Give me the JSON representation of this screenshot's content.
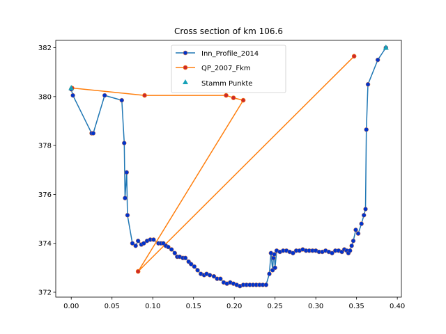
{
  "chart_data": {
    "type": "line",
    "title": "Cross section of km 106.6",
    "xlabel": "",
    "ylabel": "",
    "xlim": [
      -0.019,
      0.405
    ],
    "ylim": [
      371.8,
      382.3
    ],
    "xticks": [
      0.0,
      0.05,
      0.1,
      0.15,
      0.2,
      0.25,
      0.3,
      0.35,
      0.4
    ],
    "xtick_labels": [
      "0.00",
      "0.05",
      "0.10",
      "0.15",
      "0.20",
      "0.25",
      "0.30",
      "0.35",
      "0.40"
    ],
    "yticks": [
      372,
      374,
      376,
      378,
      380,
      382
    ],
    "ytick_labels": [
      "372",
      "374",
      "376",
      "378",
      "380",
      "382"
    ],
    "grid": false,
    "legend_position": "top-center",
    "series": [
      {
        "name": "Inn_Profile_2014",
        "kind": "line-marker",
        "color": "#1f77b4",
        "marker_color": "#0033cc",
        "x": [
          0.0,
          0.002,
          0.025,
          0.027,
          0.041,
          0.062,
          0.065,
          0.066,
          0.068,
          0.069,
          0.075,
          0.079,
          0.082,
          0.086,
          0.089,
          0.093,
          0.097,
          0.101,
          0.107,
          0.11,
          0.113,
          0.116,
          0.119,
          0.123,
          0.127,
          0.13,
          0.133,
          0.137,
          0.14,
          0.144,
          0.147,
          0.151,
          0.155,
          0.159,
          0.163,
          0.166,
          0.17,
          0.175,
          0.179,
          0.183,
          0.187,
          0.191,
          0.195,
          0.199,
          0.203,
          0.207,
          0.211,
          0.215,
          0.219,
          0.223,
          0.227,
          0.231,
          0.235,
          0.239,
          0.243,
          0.245,
          0.247,
          0.248,
          0.249,
          0.25,
          0.252,
          0.256,
          0.26,
          0.264,
          0.268,
          0.272,
          0.276,
          0.28,
          0.284,
          0.288,
          0.292,
          0.296,
          0.3,
          0.304,
          0.308,
          0.312,
          0.316,
          0.32,
          0.324,
          0.328,
          0.332,
          0.335,
          0.338,
          0.34,
          0.342,
          0.344,
          0.346,
          0.349,
          0.352,
          0.356,
          0.359,
          0.361,
          0.362,
          0.364,
          0.376,
          0.386
        ],
        "y": [
          380.3,
          380.05,
          378.5,
          378.5,
          380.05,
          379.85,
          378.1,
          375.85,
          376.9,
          375.15,
          374.0,
          373.9,
          374.1,
          373.95,
          374.0,
          374.1,
          374.15,
          374.15,
          374.0,
          374.0,
          374.0,
          373.9,
          373.85,
          373.75,
          373.6,
          373.45,
          373.45,
          373.4,
          373.4,
          373.25,
          373.15,
          373.05,
          372.9,
          372.75,
          372.7,
          372.75,
          372.7,
          372.65,
          372.55,
          372.55,
          372.4,
          372.35,
          372.4,
          372.35,
          372.3,
          372.25,
          372.3,
          372.3,
          372.3,
          372.3,
          372.3,
          372.3,
          372.3,
          372.3,
          372.75,
          373.6,
          372.9,
          373.4,
          373.55,
          373.0,
          373.7,
          373.65,
          373.7,
          373.7,
          373.65,
          373.6,
          373.7,
          373.7,
          373.75,
          373.7,
          373.7,
          373.7,
          373.7,
          373.65,
          373.65,
          373.7,
          373.65,
          373.6,
          373.7,
          373.7,
          373.65,
          373.75,
          373.7,
          373.6,
          373.7,
          373.9,
          374.1,
          374.55,
          374.4,
          374.8,
          375.15,
          375.4,
          378.65,
          380.5,
          381.5,
          382.0
        ],
        "x_note": "",
        "marker_edge": "#e07b39"
      },
      {
        "name": "QP_2007_Fkm",
        "kind": "line-marker",
        "color": "#ff7f0e",
        "marker_color": "#cc2a2a",
        "x": [
          0.001,
          0.09,
          0.19,
          0.199,
          0.211,
          0.082,
          0.347
        ],
        "y": [
          380.35,
          380.05,
          380.05,
          379.95,
          379.85,
          372.85,
          381.65
        ]
      },
      {
        "name": "Stamm Punkte",
        "kind": "scatter",
        "color": "#17a2b8",
        "marker": "triangle",
        "x": [
          0.0,
          0.386
        ],
        "y": [
          380.35,
          382.0
        ]
      }
    ]
  }
}
